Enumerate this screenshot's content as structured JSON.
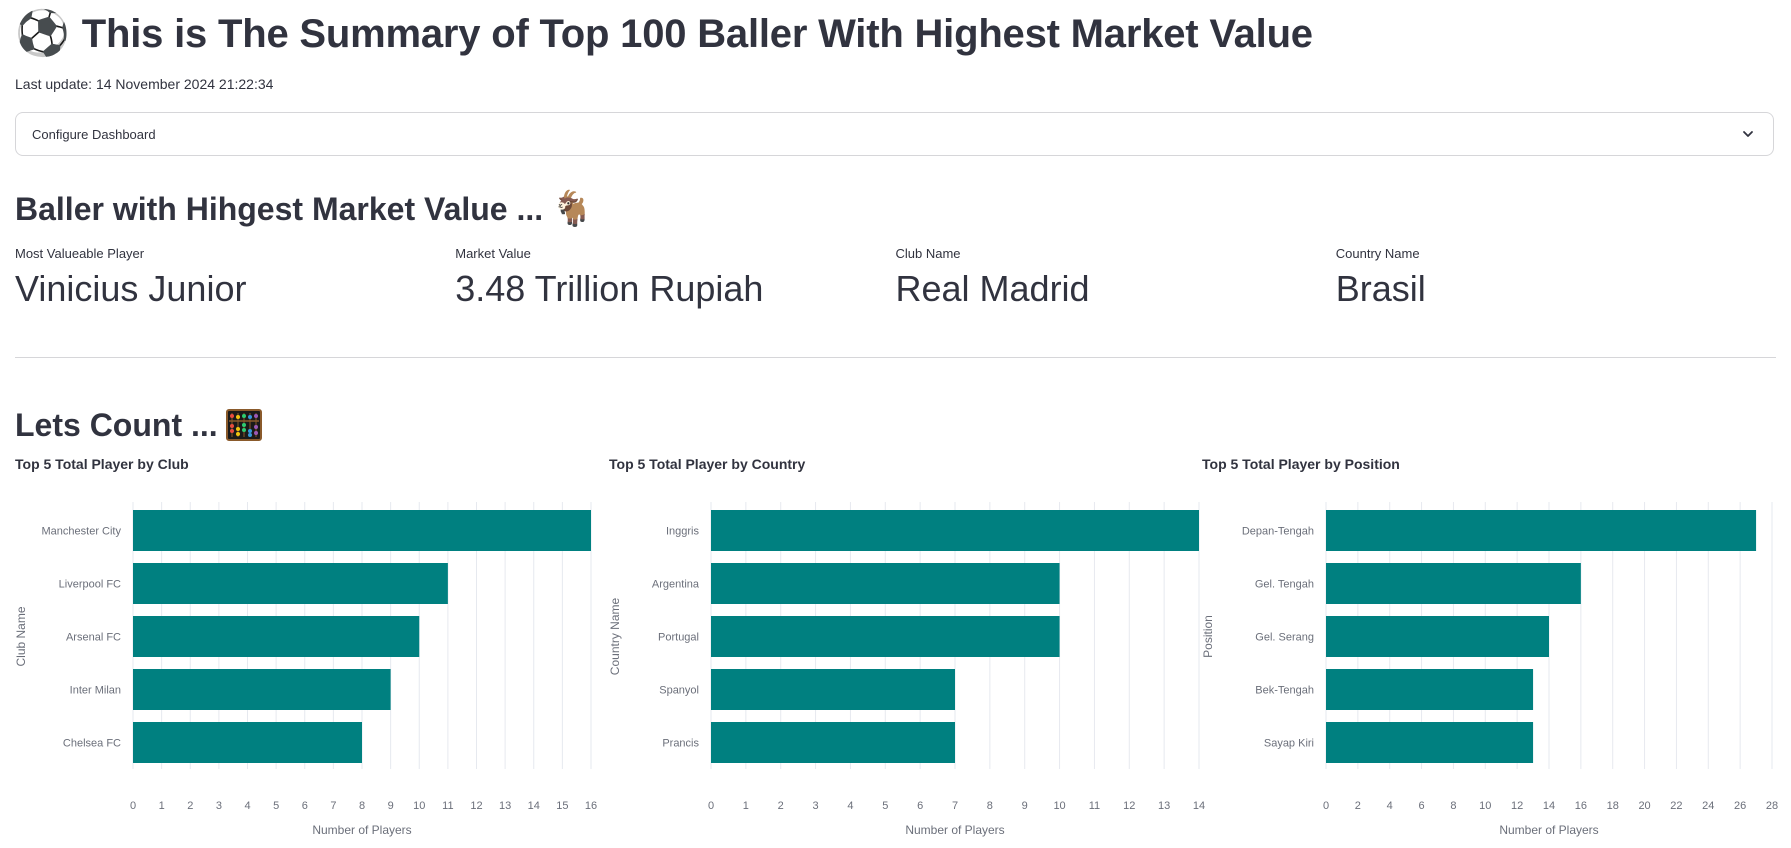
{
  "header": {
    "emoji": "⚽",
    "title": "This is The Summary of Top 100 Baller With Highest Market Value",
    "last_update": "Last update: 14 November 2024 21:22:34"
  },
  "expander": {
    "label": "Configure Dashboard"
  },
  "highest_section": {
    "heading": "Baller with Hihgest Market Value ...",
    "emoji": "🐐",
    "metrics": [
      {
        "label": "Most Valueable Player",
        "value": "Vinicius Junior"
      },
      {
        "label": "Market Value",
        "value": "3.48 Trillion Rupiah"
      },
      {
        "label": "Club Name",
        "value": "Real Madrid"
      },
      {
        "label": "Country Name",
        "value": "Brasil"
      }
    ]
  },
  "count_section": {
    "heading": "Lets Count ...",
    "icon": "abacus-icon"
  },
  "colors": {
    "bar": "#008080",
    "grid": "#e6e9ef",
    "axis_text": "#6b6f7a"
  },
  "chart_data": [
    {
      "type": "bar",
      "orientation": "horizontal",
      "title": "Top 5 Total Player by Club",
      "xlabel": "Number of Players",
      "ylabel": "Club Name",
      "categories": [
        "Manchester City",
        "Liverpool FC",
        "Arsenal FC",
        "Inter Milan",
        "Chelsea FC"
      ],
      "values": [
        16,
        11,
        10,
        9,
        8
      ],
      "xlim": [
        0,
        16
      ],
      "xticks": [
        0,
        1,
        2,
        3,
        4,
        5,
        6,
        7,
        8,
        9,
        10,
        11,
        12,
        13,
        14,
        15,
        16
      ],
      "grid": true
    },
    {
      "type": "bar",
      "orientation": "horizontal",
      "title": "Top 5 Total Player by Country",
      "xlabel": "Number of Players",
      "ylabel": "Country Name",
      "categories": [
        "Inggris",
        "Argentina",
        "Portugal",
        "Spanyol",
        "Prancis"
      ],
      "values": [
        14,
        10,
        10,
        7,
        7
      ],
      "xlim": [
        0,
        14
      ],
      "xticks": [
        0,
        1,
        2,
        3,
        4,
        5,
        6,
        7,
        8,
        9,
        10,
        11,
        12,
        13,
        14
      ],
      "grid": true
    },
    {
      "type": "bar",
      "orientation": "horizontal",
      "title": "Top 5 Total Player by Position",
      "xlabel": "Number of Players",
      "ylabel": "Position",
      "categories": [
        "Depan-Tengah",
        "Gel. Tengah",
        "Gel. Serang",
        "Bek-Tengah",
        "Sayap Kiri"
      ],
      "values": [
        27,
        16,
        14,
        13,
        13
      ],
      "xlim": [
        0,
        28
      ],
      "xticks": [
        0,
        2,
        4,
        6,
        8,
        10,
        12,
        14,
        16,
        18,
        20,
        22,
        24,
        26,
        28
      ],
      "grid": true
    }
  ]
}
